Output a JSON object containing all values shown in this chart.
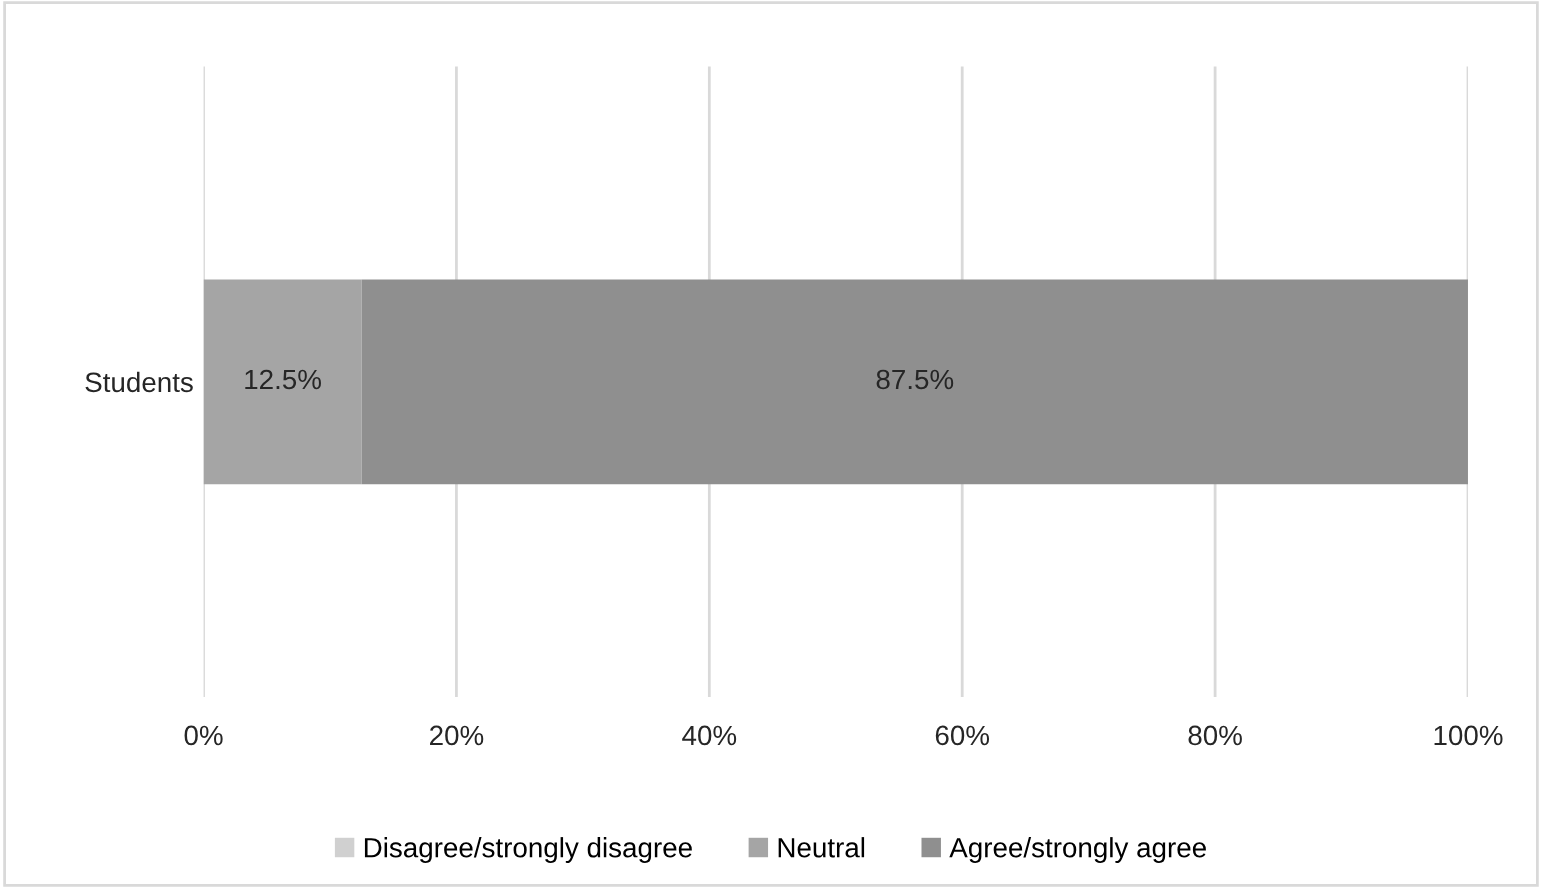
{
  "chart_data": {
    "type": "bar",
    "orientation": "horizontal",
    "stacked": true,
    "categories": [
      "Students"
    ],
    "series": [
      {
        "name": "Disagree/strongly disagree",
        "color": "#d0d0d0",
        "values": [
          0
        ],
        "value_labels": [
          null
        ]
      },
      {
        "name": "Neutral",
        "color": "#a5a5a5",
        "values": [
          12.5
        ],
        "value_labels": [
          "12.5%"
        ]
      },
      {
        "name": "Agree/strongly agree",
        "color": "#8f8f8f",
        "values": [
          87.5
        ],
        "value_labels": [
          "87.5%"
        ]
      }
    ],
    "xlim": [
      0,
      100
    ],
    "xticks": [
      {
        "value": 0,
        "label": "0%"
      },
      {
        "value": 20,
        "label": "20%"
      },
      {
        "value": 40,
        "label": "40%"
      },
      {
        "value": 60,
        "label": "60%"
      },
      {
        "value": 80,
        "label": "80%"
      },
      {
        "value": 100,
        "label": "100%"
      }
    ],
    "grid": "x",
    "legend": "bottom"
  }
}
